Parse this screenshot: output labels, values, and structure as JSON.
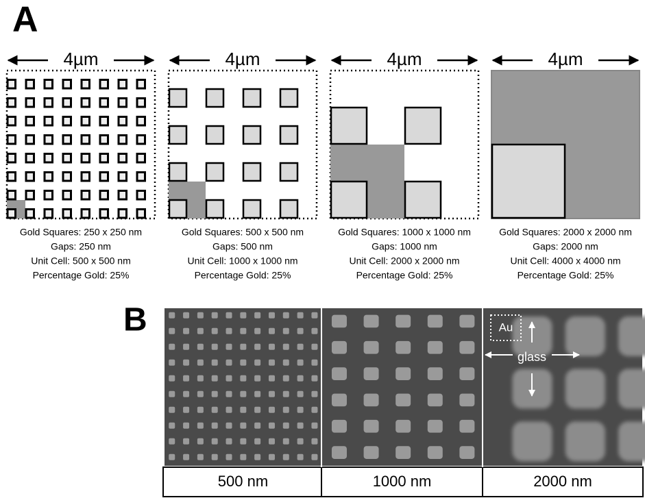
{
  "panel_a": {
    "label": "A",
    "panels": [
      {
        "scale": "4µm",
        "lines": [
          "Gold Squares: 250 x 250 nm",
          "Gaps: 250 nm",
          "Unit Cell: 500 x 500 nm",
          "Percentage Gold: 25%"
        ]
      },
      {
        "scale": "4µm",
        "lines": [
          "Gold Squares: 500 x 500 nm",
          "Gaps: 500 nm",
          "Unit Cell: 1000 x 1000 nm",
          "Percentage Gold: 25%"
        ]
      },
      {
        "scale": "4µm",
        "lines": [
          "Gold Squares: 1000 x 1000 nm",
          "Gaps: 1000 nm",
          "Unit Cell: 2000 x 2000 nm",
          "Percentage Gold: 25%"
        ]
      },
      {
        "scale": "4µm",
        "lines": [
          "Gold Squares: 2000 x 2000 nm",
          "Gaps: 2000 nm",
          "Unit Cell: 4000 x 4000 nm",
          "Percentage Gold: 25%"
        ]
      }
    ]
  },
  "panel_b": {
    "label": "B",
    "images": [
      {
        "label": "500 nm"
      },
      {
        "label": "1000 nm"
      },
      {
        "label": "2000 nm"
      }
    ],
    "annotations": {
      "au": "Au",
      "glass": "glass"
    }
  }
}
